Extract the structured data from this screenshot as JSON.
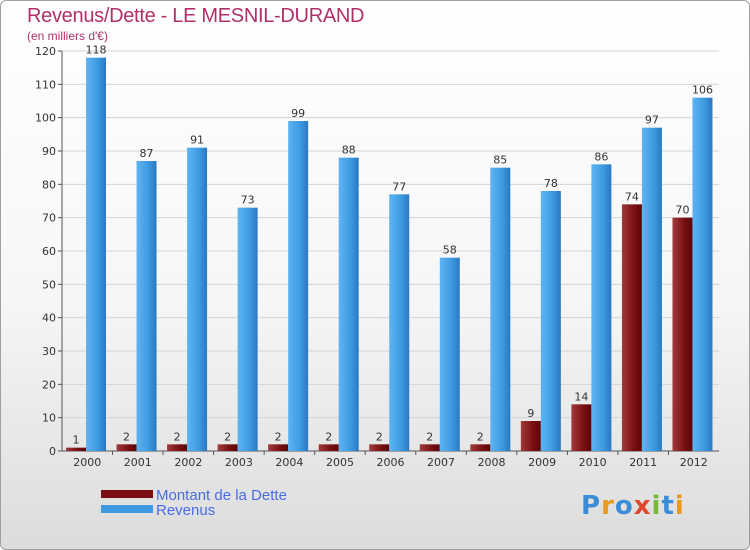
{
  "chart_data": {
    "type": "bar",
    "title": "Revenus/Dette - LE MESNIL-DURAND",
    "subtitle": "(en milliers d'€)",
    "xlabel": "",
    "ylabel": "",
    "ylim": [
      0,
      120
    ],
    "yticks": [
      0,
      10,
      20,
      30,
      40,
      50,
      60,
      70,
      80,
      90,
      100,
      110,
      120
    ],
    "grid": true,
    "legend_position": "bottom-left",
    "categories": [
      "2000",
      "2001",
      "2002",
      "2003",
      "2004",
      "2005",
      "2006",
      "2007",
      "2008",
      "2009",
      "2010",
      "2011",
      "2012"
    ],
    "series": [
      {
        "name": "Montant de la Dette",
        "color": "#7a0f12",
        "values": [
          1,
          2,
          2,
          2,
          2,
          2,
          2,
          2,
          2,
          9,
          14,
          74,
          70
        ]
      },
      {
        "name": "Revenus",
        "color": "#3d9ae0",
        "values": [
          118,
          87,
          91,
          73,
          99,
          88,
          77,
          58,
          85,
          78,
          86,
          97,
          106
        ]
      }
    ]
  },
  "logo": {
    "text": "Proxiti",
    "letters": [
      "P",
      "r",
      "o",
      "x",
      "i",
      "t",
      "i"
    ]
  }
}
